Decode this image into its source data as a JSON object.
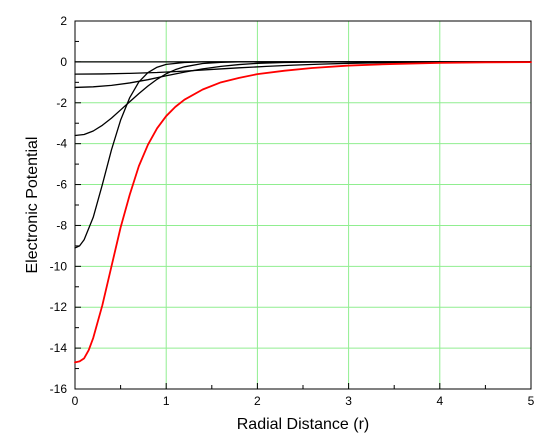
{
  "chart_data": {
    "type": "line",
    "title": "",
    "xlabel": "Radial Distance (r)",
    "ylabel": "Electronic Potential",
    "xlim": [
      0,
      5
    ],
    "ylim": [
      -16,
      2
    ],
    "x_ticks": [
      "0",
      "1",
      "2",
      "3",
      "4",
      "5"
    ],
    "y_ticks": [
      "2",
      "0",
      "-2",
      "-4",
      "-6",
      "-8",
      "-10",
      "-12",
      "-14",
      "-16"
    ],
    "grid": true,
    "grid_color": "#90ee90",
    "series": [
      {
        "color": "#000000",
        "points": [
          [
            0.0,
            -9.1
          ],
          [
            0.05,
            -9.0
          ],
          [
            0.1,
            -8.7
          ],
          [
            0.2,
            -7.6
          ],
          [
            0.3,
            -6.0
          ],
          [
            0.4,
            -4.3
          ],
          [
            0.5,
            -2.85
          ],
          [
            0.6,
            -1.75
          ],
          [
            0.7,
            -0.98
          ],
          [
            0.8,
            -0.52
          ],
          [
            0.9,
            -0.26
          ],
          [
            1.0,
            -0.12
          ],
          [
            1.2,
            -0.03
          ],
          [
            1.4,
            0.0
          ],
          [
            1.6,
            0.0
          ],
          [
            5.0,
            0.0
          ]
        ]
      },
      {
        "color": "#000000",
        "points": [
          [
            0.0,
            -3.6
          ],
          [
            0.1,
            -3.55
          ],
          [
            0.2,
            -3.38
          ],
          [
            0.3,
            -3.1
          ],
          [
            0.4,
            -2.75
          ],
          [
            0.5,
            -2.35
          ],
          [
            0.6,
            -1.95
          ],
          [
            0.7,
            -1.55
          ],
          [
            0.8,
            -1.18
          ],
          [
            0.9,
            -0.85
          ],
          [
            1.0,
            -0.58
          ],
          [
            1.1,
            -0.38
          ],
          [
            1.2,
            -0.24
          ],
          [
            1.4,
            -0.08
          ],
          [
            1.6,
            -0.02
          ],
          [
            1.8,
            0.0
          ],
          [
            5.0,
            0.0
          ]
        ]
      },
      {
        "color": "#000000",
        "points": [
          [
            0.0,
            -1.25
          ],
          [
            0.2,
            -1.22
          ],
          [
            0.4,
            -1.15
          ],
          [
            0.6,
            -1.03
          ],
          [
            0.8,
            -0.87
          ],
          [
            1.0,
            -0.68
          ],
          [
            1.2,
            -0.5
          ],
          [
            1.4,
            -0.34
          ],
          [
            1.6,
            -0.22
          ],
          [
            1.8,
            -0.13
          ],
          [
            2.0,
            -0.07
          ],
          [
            2.3,
            -0.03
          ],
          [
            2.6,
            -0.01
          ],
          [
            3.0,
            0.0
          ],
          [
            5.0,
            0.0
          ]
        ]
      },
      {
        "color": "#000000",
        "points": [
          [
            0.0,
            -0.6
          ],
          [
            0.3,
            -0.59
          ],
          [
            0.6,
            -0.56
          ],
          [
            0.9,
            -0.52
          ],
          [
            1.2,
            -0.45
          ],
          [
            1.5,
            -0.37
          ],
          [
            1.8,
            -0.29
          ],
          [
            2.1,
            -0.22
          ],
          [
            2.4,
            -0.16
          ],
          [
            2.7,
            -0.11
          ],
          [
            3.0,
            -0.07
          ],
          [
            3.4,
            -0.04
          ],
          [
            3.8,
            -0.02
          ],
          [
            4.2,
            -0.01
          ],
          [
            5.0,
            0.0
          ]
        ]
      },
      {
        "color": "#000000",
        "points": [
          [
            0.0,
            0.0
          ],
          [
            5.0,
            0.0
          ]
        ]
      },
      {
        "color": "#ff0000",
        "points": [
          [
            0.0,
            -14.7
          ],
          [
            0.05,
            -14.65
          ],
          [
            0.1,
            -14.5
          ],
          [
            0.15,
            -14.1
          ],
          [
            0.2,
            -13.5
          ],
          [
            0.3,
            -11.9
          ],
          [
            0.4,
            -10.0
          ],
          [
            0.5,
            -8.1
          ],
          [
            0.6,
            -6.5
          ],
          [
            0.7,
            -5.1
          ],
          [
            0.8,
            -4.05
          ],
          [
            0.9,
            -3.25
          ],
          [
            1.0,
            -2.65
          ],
          [
            1.1,
            -2.2
          ],
          [
            1.2,
            -1.85
          ],
          [
            1.4,
            -1.35
          ],
          [
            1.6,
            -1.0
          ],
          [
            1.8,
            -0.78
          ],
          [
            2.0,
            -0.6
          ],
          [
            2.3,
            -0.43
          ],
          [
            2.6,
            -0.3
          ],
          [
            3.0,
            -0.18
          ],
          [
            3.5,
            -0.1
          ],
          [
            4.0,
            -0.05
          ],
          [
            4.5,
            -0.02
          ],
          [
            5.0,
            -0.01
          ]
        ]
      }
    ]
  }
}
